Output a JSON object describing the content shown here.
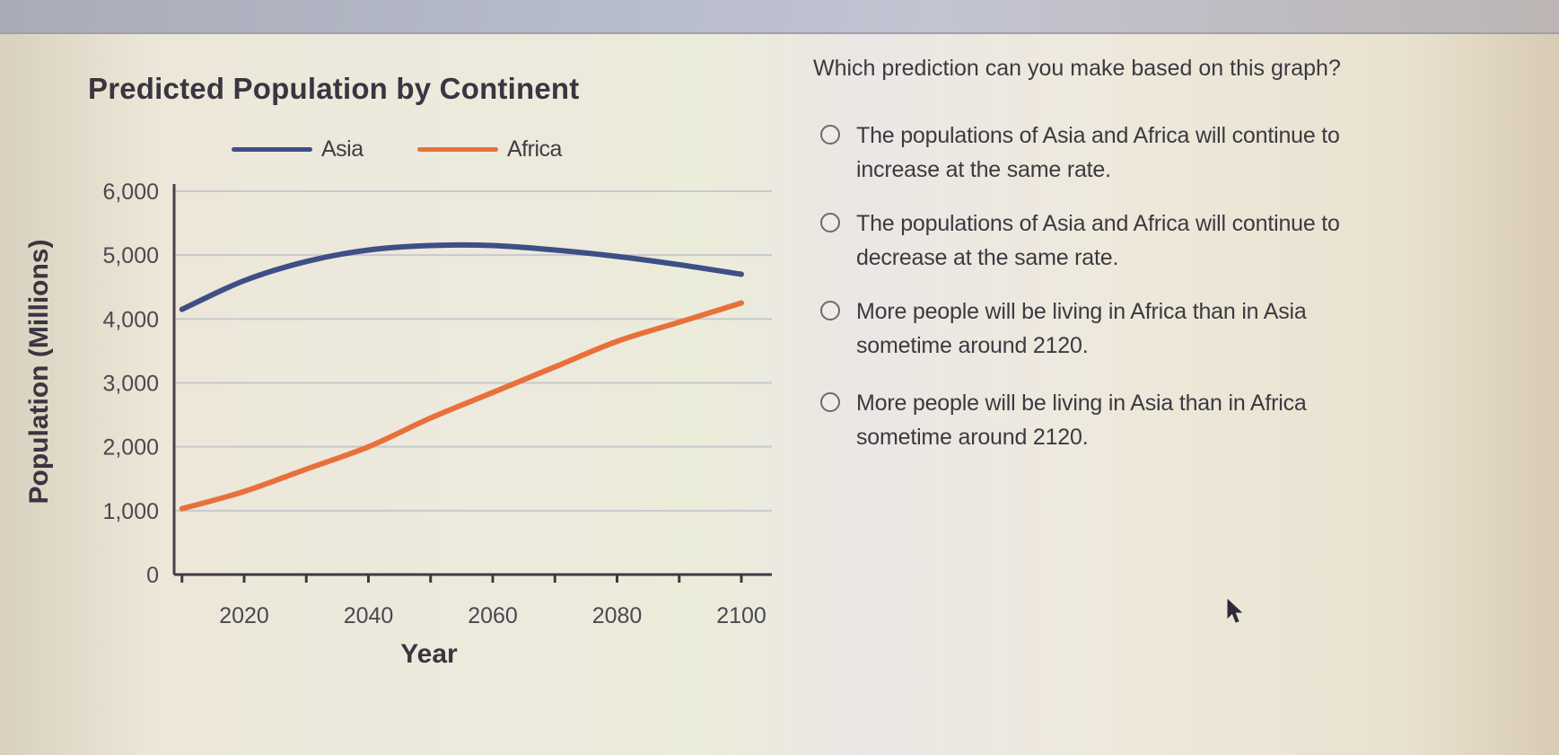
{
  "chart_data": {
    "type": "line",
    "title": "Predicted Population by Continent",
    "xlabel": "Year",
    "ylabel": "Population (Millions)",
    "x": [
      2010,
      2020,
      2030,
      2040,
      2050,
      2060,
      2070,
      2080,
      2090,
      2100
    ],
    "series": [
      {
        "name": "Asia",
        "color": "#3e4f86",
        "values": [
          4150,
          4600,
          4900,
          5080,
          5150,
          5150,
          5080,
          4980,
          4850,
          4700
        ]
      },
      {
        "name": "Africa",
        "color": "#e8703a",
        "values": [
          1030,
          1300,
          1650,
          2000,
          2450,
          2850,
          3250,
          3650,
          3950,
          4250
        ]
      }
    ],
    "ylim": [
      0,
      6000
    ],
    "xlim": [
      2005,
      2105
    ],
    "y_ticks": [
      "0",
      "1,000",
      "2,000",
      "3,000",
      "4,000",
      "5,000",
      "6,000"
    ],
    "x_tick_labels": [
      "2020",
      "2040",
      "2060",
      "2080",
      "2100"
    ],
    "x_minor_ticks": [
      2010,
      2020,
      2030,
      2040,
      2050,
      2060,
      2070,
      2080,
      2090,
      2100
    ],
    "grid": true,
    "legend_position": "top"
  },
  "question": {
    "prompt": "Which prediction can you make based on this graph?",
    "options": [
      {
        "line1": "The populations of Asia and Africa will continue to",
        "line2": "increase at the same rate."
      },
      {
        "line1": "The populations of Asia and Africa will continue to",
        "line2": "decrease at the same rate."
      },
      {
        "line1": "More people will be living in Africa than in Asia",
        "line2": "sometime around 2120."
      },
      {
        "line1": "More people will be living in Asia than in Africa",
        "line2": "sometime around 2120."
      }
    ]
  },
  "icons": {
    "radio": "radio-unselected-icon",
    "cursor": "mouse-pointer-icon"
  }
}
